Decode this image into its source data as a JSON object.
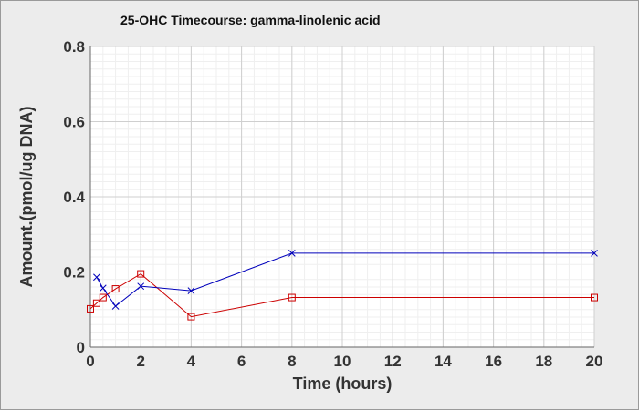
{
  "chart_data": {
    "type": "line",
    "title": "25-OHC Timecourse: gamma-linolenic acid",
    "xlabel": "Time (hours)",
    "ylabel": "Amount.(pmol/ug DNA)",
    "xlim": [
      0,
      20
    ],
    "ylim": [
      0,
      0.8
    ],
    "xticks": [
      "0",
      "2",
      "4",
      "6",
      "8",
      "10",
      "12",
      "14",
      "16",
      "18",
      "20"
    ],
    "yticks": [
      "0",
      "0.2",
      "0.4",
      "0.6",
      "0.8"
    ],
    "grid": true,
    "series": [
      {
        "color": "#cc0000",
        "marker": "square",
        "points": [
          {
            "x": 0,
            "y": 0.102
          },
          {
            "x": 0.25,
            "y": 0.117
          },
          {
            "x": 0.5,
            "y": 0.132
          },
          {
            "x": 1,
            "y": 0.155
          },
          {
            "x": 2,
            "y": 0.195
          },
          {
            "x": 4,
            "y": 0.081
          },
          {
            "x": 8,
            "y": 0.132
          },
          {
            "x": 20,
            "y": 0.132
          }
        ]
      },
      {
        "color": "#0000bb",
        "marker": "x",
        "points": [
          {
            "x": 0.25,
            "y": 0.186
          },
          {
            "x": 0.5,
            "y": 0.157
          },
          {
            "x": 1,
            "y": 0.109
          },
          {
            "x": 2,
            "y": 0.162
          },
          {
            "x": 4,
            "y": 0.15
          },
          {
            "x": 8,
            "y": 0.25
          },
          {
            "x": 20,
            "y": 0.25
          }
        ]
      }
    ]
  }
}
